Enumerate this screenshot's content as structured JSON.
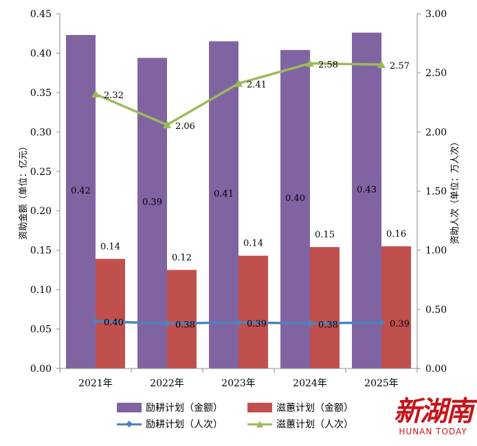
{
  "chart_data": {
    "type": "bar",
    "categories": [
      "2021年",
      "2022年",
      "2023年",
      "2024年",
      "2025年"
    ],
    "left_axis": {
      "label": "资助金额（单位：亿元）",
      "ylim": [
        0,
        0.45
      ],
      "ticks": [
        "0.00",
        "0.05",
        "0.10",
        "0.15",
        "0.20",
        "0.25",
        "0.30",
        "0.35",
        "0.40",
        "0.45"
      ]
    },
    "right_axis": {
      "label": "资助人次（单位：万人次）",
      "ylim": [
        0,
        3.0
      ],
      "ticks": [
        "0.00",
        "0.50",
        "1.00",
        "1.50",
        "2.00",
        "2.50",
        "3.00"
      ]
    },
    "series": [
      {
        "name": "励耕计划（金额）",
        "kind": "bar",
        "axis": "left",
        "color": "#8064a2",
        "values": [
          0.423,
          0.394,
          0.415,
          0.404,
          0.426
        ],
        "labels": [
          "0.42",
          "0.39",
          "0.41",
          "0.40",
          "0.43"
        ]
      },
      {
        "name": "滋蕙计划（金额）",
        "kind": "bar",
        "axis": "left",
        "color": "#c0504d",
        "values": [
          0.139,
          0.125,
          0.143,
          0.154,
          0.155
        ],
        "labels": [
          "0.14",
          "0.12",
          "0.14",
          "0.15",
          "0.16"
        ]
      },
      {
        "name": "励耕计划（人次）",
        "kind": "line",
        "axis": "right",
        "color": "#4f81bd",
        "marker": "diamond",
        "values": [
          0.4,
          0.38,
          0.39,
          0.38,
          0.39
        ],
        "labels": [
          "0.40",
          "0.38",
          "0.39",
          "0.38",
          "0.39"
        ]
      },
      {
        "name": "滋蕙计划（人次）",
        "kind": "line",
        "axis": "right",
        "color": "#9bbb59",
        "marker": "triangle",
        "values": [
          2.32,
          2.06,
          2.41,
          2.58,
          2.57
        ],
        "labels": [
          "2.32",
          "2.06",
          "2.41",
          "2.58",
          "2.57"
        ]
      }
    ],
    "grid": false,
    "legend_position": "bottom"
  },
  "watermark": {
    "cn": "新湖南",
    "en": "HUNAN TODAY"
  }
}
